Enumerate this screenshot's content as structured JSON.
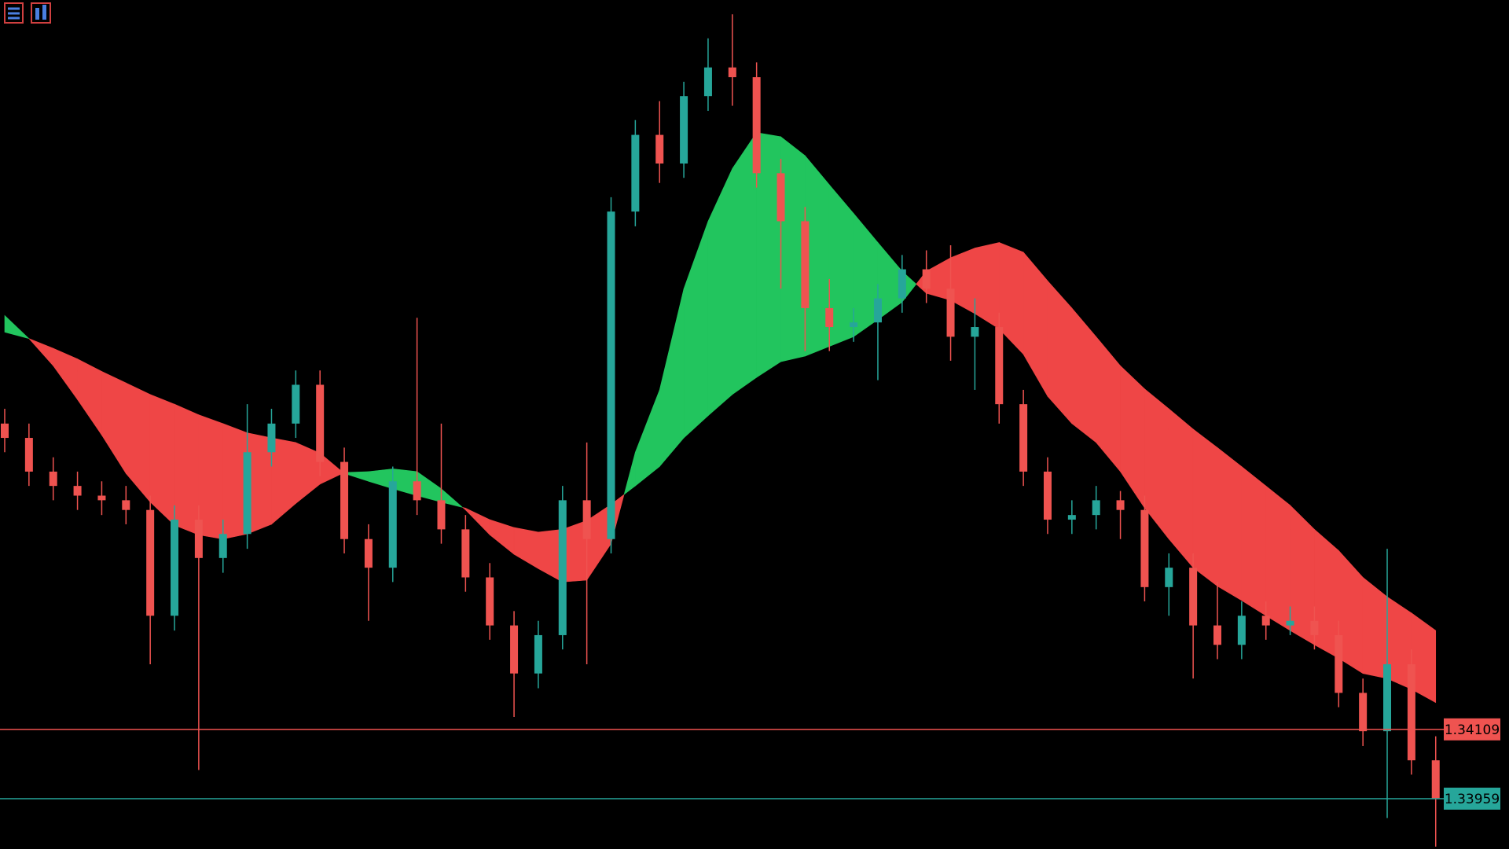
{
  "chart_data": {
    "type": "candlestick",
    "ylim": [
      1.3385,
      1.35688
    ],
    "open": [
      1.34771,
      1.3474,
      1.34667,
      1.34636,
      1.34615,
      1.34605,
      1.34584,
      1.34355,
      1.34563,
      1.3448,
      1.34532,
      1.34709,
      1.34771,
      1.34855,
      1.34688,
      1.34521,
      1.34459,
      1.34646,
      1.34605,
      1.34542,
      1.34438,
      1.34334,
      1.3423,
      1.34313,
      1.34605,
      1.34521,
      1.3523,
      1.35396,
      1.35334,
      1.3548,
      1.35542,
      1.35521,
      1.35313,
      1.35209,
      1.35021,
      1.3498,
      1.3499,
      1.35042,
      1.35105,
      1.35063,
      1.34959,
      1.3498,
      1.34813,
      1.34667,
      1.34563,
      1.34573,
      1.34605,
      1.34584,
      1.34417,
      1.34459,
      1.34334,
      1.34292,
      1.34355,
      1.34334,
      1.34344,
      1.34313,
      1.34188,
      1.34105,
      1.3425,
      1.34042
    ],
    "high": [
      1.34803,
      1.34771,
      1.34698,
      1.34667,
      1.34646,
      1.34636,
      1.34615,
      1.34594,
      1.34594,
      1.34563,
      1.34813,
      1.34803,
      1.34886,
      1.34886,
      1.34719,
      1.34553,
      1.34678,
      1.35,
      1.34771,
      1.34573,
      1.34469,
      1.34365,
      1.34344,
      1.34636,
      1.3473,
      1.35261,
      1.35428,
      1.35469,
      1.35511,
      1.35605,
      1.35657,
      1.35553,
      1.35344,
      1.3524,
      1.35084,
      1.35021,
      1.35073,
      1.35136,
      1.35146,
      1.35157,
      1.35042,
      1.35011,
      1.34844,
      1.34698,
      1.34605,
      1.34636,
      1.34625,
      1.34615,
      1.3449,
      1.3449,
      1.34428,
      1.34386,
      1.34386,
      1.34375,
      1.34375,
      1.34344,
      1.34219,
      1.345,
      1.34282,
      1.34094
    ],
    "low": [
      1.34709,
      1.34636,
      1.34605,
      1.34584,
      1.34573,
      1.34553,
      1.3425,
      1.34323,
      1.34021,
      1.34448,
      1.345,
      1.34678,
      1.3474,
      1.34657,
      1.3449,
      1.34344,
      1.34428,
      1.34573,
      1.34511,
      1.34407,
      1.34303,
      1.34136,
      1.34198,
      1.34282,
      1.3425,
      1.3449,
      1.35198,
      1.35292,
      1.35303,
      1.35448,
      1.35459,
      1.35282,
      1.35063,
      1.34928,
      1.34928,
      1.34948,
      1.34865,
      1.35011,
      1.35032,
      1.34907,
      1.34844,
      1.34771,
      1.34636,
      1.34532,
      1.34532,
      1.34542,
      1.34521,
      1.34386,
      1.34355,
      1.34219,
      1.34261,
      1.34261,
      1.34303,
      1.34313,
      1.34282,
      1.34157,
      1.34073,
      1.33917,
      1.34011,
      1.33855
    ],
    "close": [
      1.3474,
      1.34667,
      1.34636,
      1.34615,
      1.34605,
      1.34584,
      1.34355,
      1.34563,
      1.3448,
      1.34532,
      1.34709,
      1.34771,
      1.34855,
      1.34688,
      1.34521,
      1.34459,
      1.34646,
      1.34605,
      1.34542,
      1.34438,
      1.34334,
      1.3423,
      1.34313,
      1.34605,
      1.34521,
      1.3523,
      1.35396,
      1.35334,
      1.3548,
      1.35542,
      1.35521,
      1.35313,
      1.35209,
      1.35021,
      1.3498,
      1.3499,
      1.35042,
      1.35105,
      1.35063,
      1.34959,
      1.3498,
      1.34813,
      1.34667,
      1.34563,
      1.34573,
      1.34605,
      1.34584,
      1.34417,
      1.34459,
      1.34334,
      1.34292,
      1.34355,
      1.34334,
      1.34344,
      1.34313,
      1.34188,
      1.34105,
      1.3425,
      1.34042,
      1.33959
    ],
    "up_color": "#26a69a",
    "down_color": "#ef5350",
    "band": {
      "fast": [
        1.35005,
        1.34955,
        1.34896,
        1.34823,
        1.34746,
        1.34663,
        1.34601,
        1.34551,
        1.3453,
        1.34521,
        1.34532,
        1.34553,
        1.34598,
        1.3464,
        1.34665,
        1.34667,
        1.34673,
        1.34667,
        1.3463,
        1.34584,
        1.3453,
        1.34488,
        1.34457,
        1.34428,
        1.34432,
        1.34511,
        1.34709,
        1.34844,
        1.35063,
        1.35209,
        1.35323,
        1.35401,
        1.35392,
        1.35351,
        1.35288,
        1.35226,
        1.35163,
        1.35101,
        1.35053,
        1.35038,
        1.35009,
        1.34976,
        1.34921,
        1.3483,
        1.34771,
        1.3473,
        1.34667,
        1.34588,
        1.34521,
        1.34459,
        1.34419,
        1.34388,
        1.34355,
        1.34323,
        1.34292,
        1.34263,
        1.3423,
        1.34219,
        1.34196,
        1.34167
      ],
      "slow": [
        1.34969,
        1.34955,
        1.34934,
        1.34911,
        1.34884,
        1.34859,
        1.34834,
        1.34813,
        1.3479,
        1.34771,
        1.34751,
        1.3474,
        1.3473,
        1.34707,
        1.34663,
        1.34646,
        1.3463,
        1.34615,
        1.34601,
        1.34588,
        1.34563,
        1.34546,
        1.34536,
        1.34542,
        1.34561,
        1.34596,
        1.34636,
        1.34678,
        1.3474,
        1.34788,
        1.34834,
        1.34871,
        1.34905,
        1.34917,
        1.34938,
        1.34959,
        1.34996,
        1.35034,
        1.35101,
        1.3513,
        1.35151,
        1.35163,
        1.35142,
        1.3508,
        1.35021,
        1.34959,
        1.34896,
        1.34846,
        1.34803,
        1.34759,
        1.34719,
        1.34678,
        1.34636,
        1.34594,
        1.34542,
        1.34496,
        1.34438,
        1.34396,
        1.34361,
        1.34323
      ],
      "up_color": "#22c55e",
      "down_color": "#ef4646"
    },
    "price_lines": [
      {
        "value": 1.34109,
        "color": "#ef5350"
      },
      {
        "value": 1.33959,
        "color": "#26a69a"
      }
    ]
  }
}
